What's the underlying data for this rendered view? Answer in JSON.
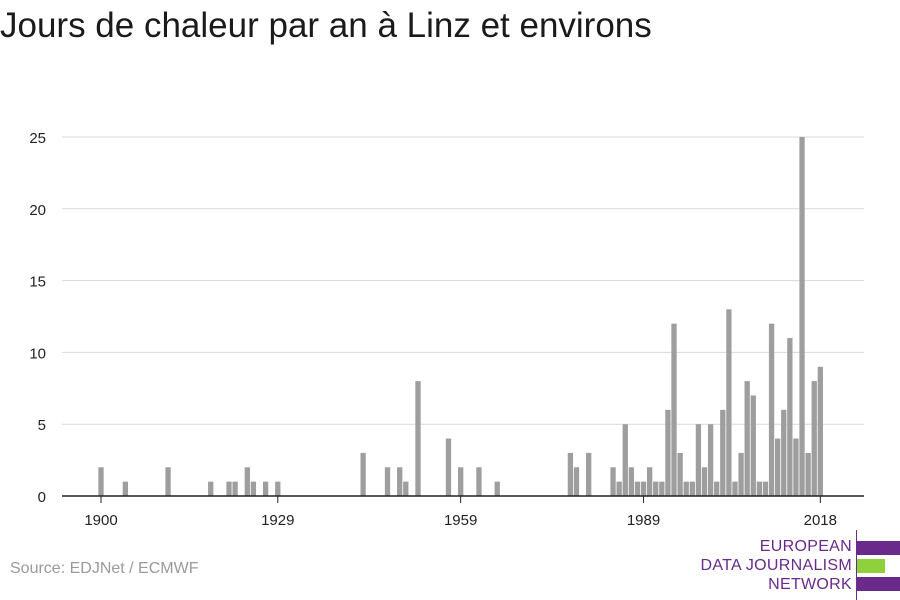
{
  "title": "Jours de chaleur par an à Linz et environs",
  "source": "Source: EDJNet / ECMWF",
  "logo": {
    "lines": [
      "EUROPEAN",
      "DATA JOURNALISM",
      "NETWORK"
    ],
    "colors": [
      "#6a2a8c",
      "#8fd13a",
      "#6a2a8c"
    ]
  },
  "colors": {
    "bar": "#9e9e9e",
    "grid": "#d9d9d9",
    "axis": "#222222",
    "tick_label": "#222222"
  },
  "chart_data": {
    "type": "bar",
    "title": "Jours de chaleur par an à Linz et environs",
    "xlabel": "",
    "ylabel": "",
    "xlim": [
      1900,
      2018
    ],
    "ylim": [
      0,
      25
    ],
    "x_ticks": [
      1900,
      1929,
      1959,
      1989,
      2018
    ],
    "y_ticks": [
      0,
      5,
      10,
      15,
      20,
      25
    ],
    "grid": "horizontal",
    "legend": "none",
    "x": [
      1900,
      1904,
      1911,
      1918,
      1921,
      1922,
      1924,
      1925,
      1927,
      1929,
      1943,
      1947,
      1949,
      1950,
      1952,
      1957,
      1959,
      1962,
      1965,
      1977,
      1978,
      1980,
      1984,
      1985,
      1986,
      1987,
      1988,
      1989,
      1990,
      1991,
      1992,
      1993,
      1994,
      1995,
      1996,
      1997,
      1998,
      1999,
      2000,
      2001,
      2002,
      2003,
      2004,
      2005,
      2006,
      2007,
      2008,
      2009,
      2010,
      2011,
      2012,
      2013,
      2014,
      2015,
      2016,
      2017,
      2018
    ],
    "values": [
      2,
      1,
      2,
      1,
      1,
      1,
      2,
      1,
      1,
      1,
      3,
      2,
      2,
      1,
      8,
      4,
      2,
      2,
      1,
      3,
      2,
      3,
      2,
      1,
      5,
      2,
      1,
      1,
      2,
      1,
      1,
      6,
      12,
      3,
      1,
      1,
      5,
      2,
      5,
      1,
      6,
      13,
      1,
      3,
      8,
      7,
      1,
      1,
      12,
      4,
      6,
      11,
      4,
      25,
      3,
      8,
      9
    ]
  }
}
